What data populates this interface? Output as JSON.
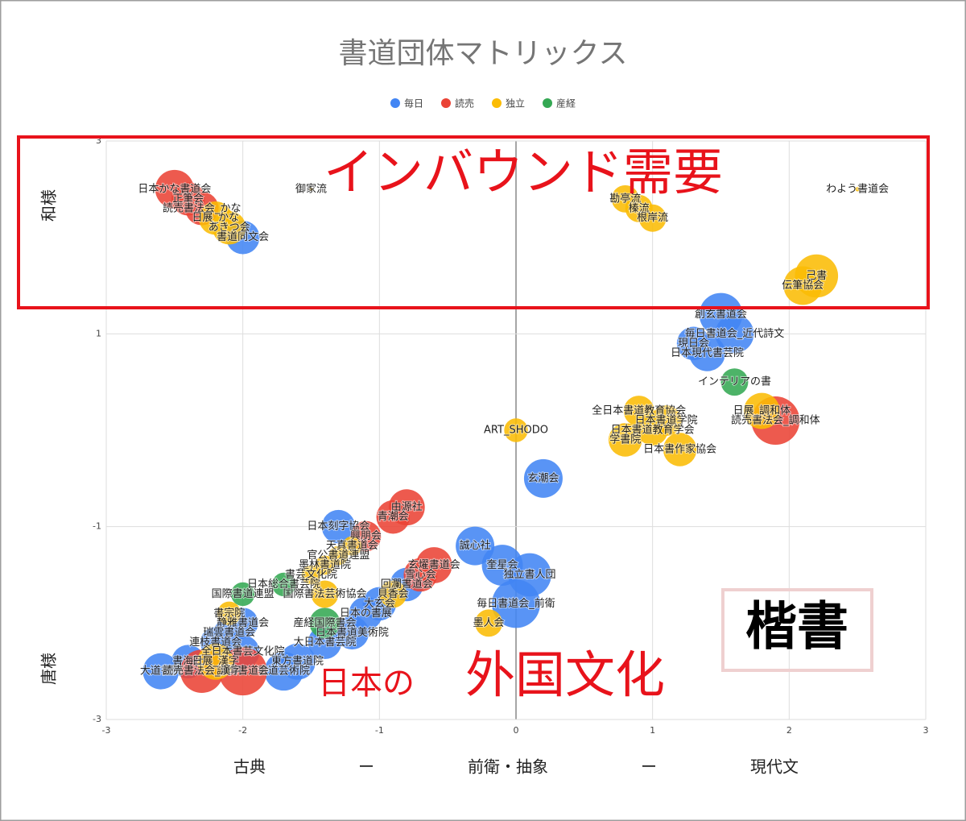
{
  "chart_data": {
    "type": "bubble",
    "title": "書道団体マトリックス",
    "xlim": [
      -3,
      3
    ],
    "ylim": [
      -3,
      3
    ],
    "xticks": [
      -3,
      -2,
      -1,
      0,
      1,
      2,
      3
    ],
    "yticks": [
      -3,
      -1,
      1,
      3
    ],
    "grid": true,
    "legend": "top",
    "y_labels": [
      "和様",
      "唐様"
    ],
    "x_labels": [
      "古典",
      "ー",
      "前衛・抽象",
      "ー",
      "現代文"
    ],
    "annotations": [
      "インバウンド需要",
      "日本の",
      "外国文化",
      "楷書"
    ],
    "series": [
      {
        "name": "毎日",
        "color": "#4285f4",
        "labels": [
          "書道同文会",
          "創玄書道会",
          "毎日書道会_近代詩文",
          "現日会",
          "日本現代書芸院",
          "玄潮会",
          "日本刻字協会",
          "誠心社",
          "奎星会",
          "独立書人団",
          "毎日書道会_前衛",
          "回瀾書道会",
          "大玄会",
          "日本の書展",
          "日本書道美術院",
          "大日本書芸院",
          "静雅書道会",
          "瑞雲書道会",
          "連枝書道会",
          "書海社",
          "大道書院",
          "東方書道院",
          "書道芸術院",
          "全日本書芸文化院"
        ],
        "x": [
          -2,
          1.5,
          1.6,
          1.3,
          1.4,
          0.2,
          -1.3,
          -0.3,
          -0.1,
          0.1,
          0,
          -0.8,
          -1.0,
          -1.1,
          -1.2,
          -1.4,
          -2.0,
          -2.1,
          -2.2,
          -2.4,
          -2.6,
          -1.6,
          -1.7,
          -2.0
        ],
        "y": [
          2,
          1.2,
          1.0,
          0.9,
          0.8,
          -0.5,
          -1.0,
          -1.2,
          -1.4,
          -1.5,
          -1.8,
          -1.6,
          -1.8,
          -1.9,
          -2.1,
          -2.2,
          -2.0,
          -2.1,
          -2.2,
          -2.4,
          -2.5,
          -2.4,
          -2.5,
          -2.3
        ],
        "sizes": [
          12,
          20,
          16,
          12,
          14,
          16,
          12,
          16,
          18,
          20,
          25,
          12,
          12,
          12,
          12,
          12,
          10,
          10,
          10,
          12,
          14,
          14,
          16,
          12
        ]
      },
      {
        "name": "読売",
        "color": "#ea4335",
        "labels": [
          "日本かな書道会",
          "正筆会",
          "読売書法会_かな",
          "読売書法会_調和体",
          "由源社",
          "青潮会",
          "興朋会",
          "玄燿書道会",
          "雪心会",
          "謙慎書道会",
          "読売書法会_漢字"
        ],
        "x": [
          -2.5,
          -2.4,
          -2.3,
          1.9,
          -0.8,
          -0.9,
          -1.1,
          -0.6,
          -0.7,
          -2.0,
          -2.3
        ],
        "y": [
          2.5,
          2.4,
          2.3,
          0.1,
          -0.8,
          -0.9,
          -1.1,
          -1.4,
          -1.5,
          -2.5,
          -2.5
        ],
        "sizes": [
          16,
          12,
          12,
          25,
          14,
          12,
          10,
          14,
          12,
          25,
          20
        ]
      },
      {
        "name": "独立",
        "color": "#fbbc04",
        "labels": [
          "日展_かな",
          "あきつ会",
          "御家流",
          "わよう書道会",
          "勘亭流",
          "榛流",
          "根岸流",
          "己書",
          "伝筆協会",
          "日展_調和体",
          "全日本書道教育協会",
          "日本書道学院",
          "日本書道教育学会",
          "学書院",
          "日本書作家協会",
          "ART_SHODO",
          "墨人会",
          "天真書道会",
          "官公書道連盟",
          "墨林書道院",
          "書芸文化院",
          "日展_漢字",
          "国際書法芸術協会",
          "貝香会",
          "書宗院"
        ],
        "x": [
          -2.2,
          -2.1,
          -1.5,
          2.5,
          0.8,
          0.9,
          1.0,
          2.2,
          2.1,
          1.8,
          0.9,
          1.1,
          1.0,
          0.8,
          1.2,
          0,
          -0.2,
          -1.2,
          -1.3,
          -1.4,
          -1.5,
          -2.2,
          -1.4,
          -0.9,
          -2.1
        ],
        "y": [
          2.2,
          2.1,
          2.5,
          2.5,
          2.4,
          2.3,
          2.2,
          1.6,
          1.5,
          0.2,
          0.2,
          0.1,
          0.0,
          -0.1,
          -0.2,
          0,
          -2.0,
          -1.2,
          -1.3,
          -1.4,
          -1.5,
          -2.4,
          -1.7,
          -1.7,
          -1.9
        ],
        "sizes": [
          12,
          12,
          0.1,
          0.2,
          8,
          8,
          8,
          20,
          16,
          14,
          10,
          10,
          10,
          12,
          12,
          6,
          8,
          4,
          4,
          4,
          4,
          14,
          8,
          8,
          6
        ]
      },
      {
        "name": "産経",
        "color": "#34a853",
        "labels": [
          "インテリアの書",
          "産経国際書会",
          "日本総合書芸院",
          "国際書道連盟"
        ],
        "x": [
          1.6,
          -1.4,
          -1.7,
          -2.0
        ],
        "y": [
          0.5,
          -2.0,
          -1.6,
          -1.7
        ],
        "sizes": [
          8,
          10,
          6,
          6
        ]
      }
    ]
  }
}
